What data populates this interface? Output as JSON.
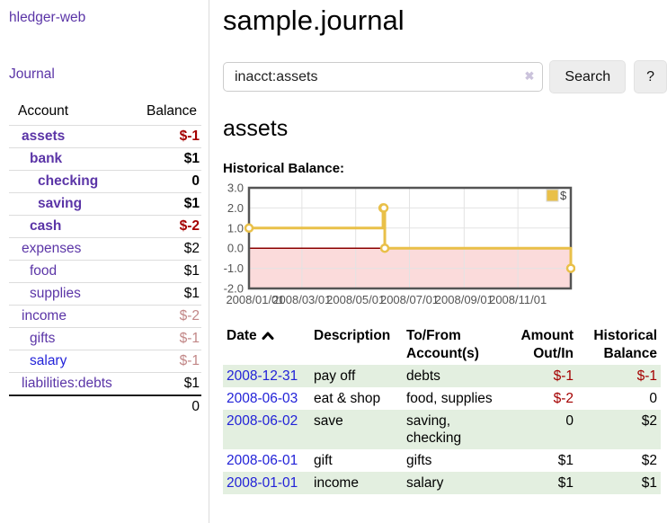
{
  "sidebar": {
    "app_title": "hledger-web",
    "journal_label": "Journal",
    "accounts_header": {
      "account": "Account",
      "balance": "Balance"
    },
    "accounts": [
      {
        "name": "assets",
        "level": 1,
        "in_account": true,
        "balance": "$-1",
        "balance_style": "neg-strong"
      },
      {
        "name": "bank",
        "level": 2,
        "in_account": true,
        "balance": "$1",
        "balance_style": "strong"
      },
      {
        "name": "checking",
        "level": 3,
        "in_account": true,
        "balance": "0",
        "balance_style": "strong"
      },
      {
        "name": "saving",
        "level": 3,
        "in_account": true,
        "balance": "$1",
        "balance_style": "strong"
      },
      {
        "name": "cash",
        "level": 2,
        "in_account": true,
        "balance": "$-2",
        "balance_style": "neg-strong"
      },
      {
        "name": "expenses",
        "level": 1,
        "in_account": false,
        "balance": "$2",
        "balance_style": "normal"
      },
      {
        "name": "food",
        "level": 2,
        "in_account": false,
        "balance": "$1",
        "balance_style": "normal"
      },
      {
        "name": "supplies",
        "level": 2,
        "in_account": false,
        "balance": "$1",
        "balance_style": "normal"
      },
      {
        "name": "income",
        "level": 1,
        "in_account": false,
        "balance": "$-2",
        "balance_style": "neg-muted"
      },
      {
        "name": "gifts",
        "level": 2,
        "in_account": false,
        "balance": "$-1",
        "balance_style": "neg-muted"
      },
      {
        "name": "salary",
        "level": 2,
        "in_account": false,
        "balance": "$-1",
        "balance_style": "neg-muted",
        "link_style": "blue"
      },
      {
        "name": "liabilities:debts",
        "level": 1,
        "in_account": false,
        "balance": "$1",
        "balance_style": "normal"
      }
    ],
    "total": "0"
  },
  "main": {
    "title": "sample.journal",
    "search": {
      "value": "inacct:assets",
      "clear_icon": "✖",
      "button_label": "Search",
      "help_label": "?"
    },
    "account_heading": "assets",
    "register": {
      "headers": [
        {
          "lines": [
            "Date"
          ],
          "sorted": "asc",
          "interactable": true
        },
        {
          "lines": [
            "Description"
          ]
        },
        {
          "lines": [
            "To/From",
            "Account(s)"
          ]
        },
        {
          "lines": [
            "Amount",
            "Out/In"
          ],
          "align": "right"
        },
        {
          "lines": [
            "Historical",
            "Balance"
          ],
          "align": "right"
        }
      ],
      "rows": [
        {
          "date": "2008-12-31",
          "description": "pay off",
          "accounts": "debts",
          "amount": "$-1",
          "amount_negative": true,
          "balance": "$-1",
          "balance_negative": true
        },
        {
          "date": "2008-06-03",
          "description": "eat & shop",
          "accounts": "food, supplies",
          "amount": "$-2",
          "amount_negative": true,
          "balance": "0",
          "balance_negative": false
        },
        {
          "date": "2008-06-02",
          "description": "save",
          "accounts": "saving,\nchecking",
          "amount": "0",
          "amount_negative": false,
          "balance": "$2",
          "balance_negative": false
        },
        {
          "date": "2008-06-01",
          "description": "gift",
          "accounts": "gifts",
          "amount": "$1",
          "amount_negative": false,
          "balance": "$2",
          "balance_negative": false
        },
        {
          "date": "2008-01-01",
          "description": "income",
          "accounts": "salary",
          "amount": "$1",
          "amount_negative": false,
          "balance": "$1",
          "balance_negative": false
        }
      ]
    }
  },
  "chart_data": {
    "type": "line",
    "title": "Historical Balance:",
    "step": true,
    "ylim": [
      -2,
      3
    ],
    "y_ticks": [
      3.0,
      2.0,
      1.0,
      0.0,
      -1.0,
      -2.0
    ],
    "x_range_days": [
      0,
      365
    ],
    "x_ticks": [
      {
        "label": "2008/01/01",
        "day": 0
      },
      {
        "label": "2008/03/01",
        "day": 60
      },
      {
        "label": "2008/05/01",
        "day": 121
      },
      {
        "label": "2008/07/01",
        "day": 182
      },
      {
        "label": "2008/09/01",
        "day": 244
      },
      {
        "label": "2008/11/01",
        "day": 305
      }
    ],
    "series": [
      {
        "name": "$",
        "color": "#e9c049",
        "points": [
          {
            "date": "2008-01-01",
            "day": 0,
            "value": 1
          },
          {
            "date": "2008-06-01",
            "day": 152,
            "value": 2
          },
          {
            "date": "2008-06-02",
            "day": 153,
            "value": 2
          },
          {
            "date": "2008-06-03",
            "day": 154,
            "value": 0
          },
          {
            "date": "2008-12-31",
            "day": 365,
            "value": -1
          }
        ]
      }
    ],
    "legend": {
      "label": "$",
      "color": "#e9c049",
      "position": "top-right"
    },
    "grid": true,
    "negative_region_fill": "#fbdbdb",
    "zero_line_color": "#8b0000",
    "axis_text_color": "#545454",
    "border_color": "#545454"
  },
  "colors": {
    "link_purple": "#5b35a7",
    "link_blue": "#2323d9",
    "negative_strong": "#a40000",
    "negative_muted": "#c28787",
    "row_stripe_green": "#e3efe0",
    "chart_line": "#e9c049"
  }
}
